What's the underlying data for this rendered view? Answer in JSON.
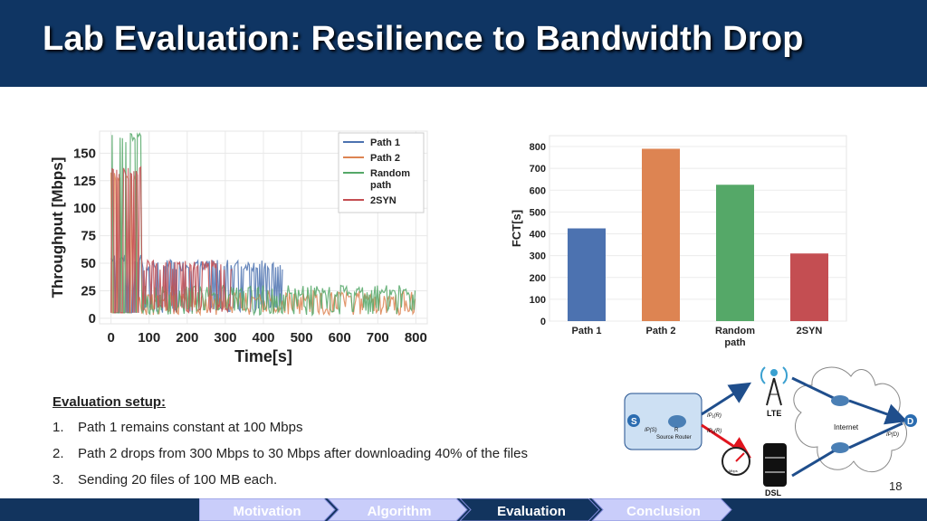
{
  "slide": {
    "title": "Lab Evaluation: Resilience to Bandwidth Drop",
    "page_number": "18"
  },
  "colors": {
    "header_bg": "#0f3563",
    "path1": "#4c72b0",
    "path2": "#dd8452",
    "random": "#55a868",
    "twosyn": "#c44e52"
  },
  "chart_data": [
    {
      "type": "line",
      "xlabel": "Time[s]",
      "ylabel": "Throughput [Mbps]",
      "xlim": [
        -30,
        830
      ],
      "ylim": [
        -5,
        170
      ],
      "xticks": [
        0,
        100,
        200,
        300,
        400,
        500,
        600,
        700,
        800
      ],
      "yticks": [
        0,
        25,
        50,
        75,
        100,
        125,
        150
      ],
      "grid": true,
      "legend_position": "top-right",
      "series": [
        {
          "name": "Path 1",
          "color": "#4c72b0",
          "start": 0,
          "end": 450,
          "levels": [
            [
              0,
              5,
              50
            ],
            [
              80,
              5,
              48
            ]
          ]
        },
        {
          "name": "Path 2",
          "color": "#dd8452",
          "start": 0,
          "end": 800,
          "levels": [
            [
              0,
              5,
              125
            ],
            [
              70,
              3,
              20
            ]
          ]
        },
        {
          "name": "Random path",
          "color": "#55a868",
          "start": 0,
          "end": 800,
          "levels": [
            [
              0,
              5,
              160
            ],
            [
              80,
              3,
              25
            ]
          ]
        },
        {
          "name": "2SYN",
          "color": "#c44e52",
          "start": 0,
          "end": 320,
          "levels": [
            [
              0,
              5,
              130
            ],
            [
              80,
              5,
              48
            ]
          ]
        }
      ]
    },
    {
      "type": "bar",
      "ylabel": "FCT[s]",
      "xlabel": "",
      "categories": [
        "Path 1",
        "Path 2",
        "Random path",
        "2SYN"
      ],
      "category_lines": [
        [
          "Path 1"
        ],
        [
          "Path 2"
        ],
        [
          "Random",
          "path"
        ],
        [
          "2SYN"
        ]
      ],
      "values": [
        425,
        790,
        625,
        310
      ],
      "colors": [
        "#4c72b0",
        "#dd8452",
        "#55a868",
        "#c44e52"
      ],
      "ylim": [
        0,
        850
      ],
      "yticks": [
        0,
        100,
        200,
        300,
        400,
        500,
        600,
        700,
        800
      ],
      "grid": true
    }
  ],
  "setup": {
    "title": "Evaluation setup:",
    "items": [
      {
        "num": "1.",
        "text": "Path 1 remains constant at 100 Mbps"
      },
      {
        "num": "2.",
        "text": "Path 2 drops from 300 Mbps to 30 Mbps after downloading 40% of the files"
      },
      {
        "num": "3.",
        "text": "Sending 20 files of 100 MB each."
      }
    ]
  },
  "diagram": {
    "source_label": "S",
    "router_label": "R",
    "router_caption": "Source Router",
    "ip_s": "IP(S)",
    "ip1": "IP₁(R)",
    "ip2": "IP₂(R)",
    "lte_label": "LTE",
    "dsl_label": "DSL",
    "internet_label": "Internet",
    "dest_label": "D",
    "ip_d": "IP(D)",
    "speed_label": "Mbps",
    "tower_label": "LTE"
  },
  "nav": {
    "items": [
      "Motivation",
      "Algorithm",
      "Evaluation",
      "Conclusion"
    ],
    "active_index": 2
  }
}
